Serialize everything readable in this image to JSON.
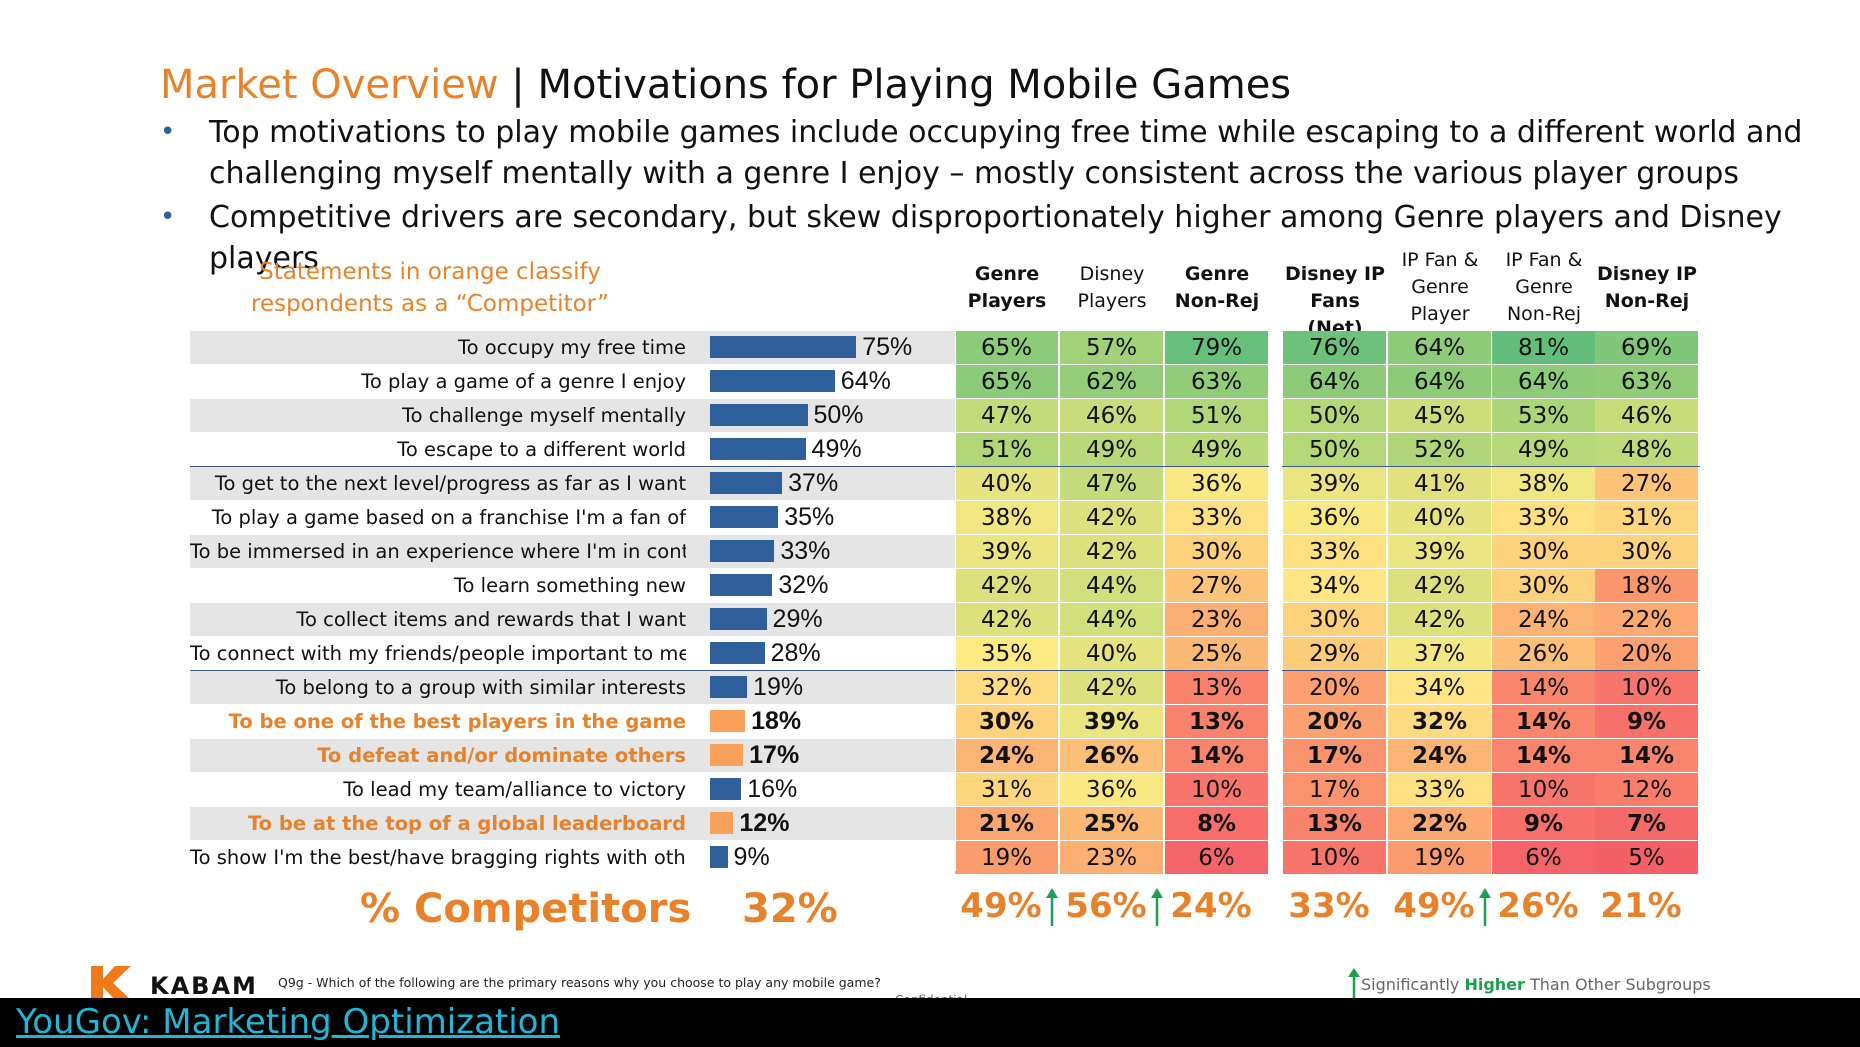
{
  "title": {
    "accent": "Market Overview",
    "separator": " | ",
    "main": "Motivations for Playing Mobile Games"
  },
  "bullets": [
    "Top motivations to play mobile games include occupying free time while escaping to a different world and challenging myself mentally with a genre I enjoy – mostly consistent across the various player groups",
    "Competitive drivers are secondary, but skew disproportionately higher among Genre players and Disney players"
  ],
  "note": "Statements in orange classify respondents as a “Competitor”",
  "colors": {
    "accent": "#e8822a",
    "bar": "#2e5f9b",
    "bar_competitor": "#f9a05a",
    "up_arrow": "#1aa150"
  },
  "chart_data": {
    "type": "table",
    "title": "Motivations for Playing Mobile Games",
    "columns": [
      "Genre Players",
      "Disney Players",
      "Genre Non-Rej",
      "Disney IP Fans (Net)",
      "IP Fan & Genre Player",
      "IP Fan & Genre Non-Rej",
      "Disney IP Non-Rej"
    ],
    "bold_columns": [
      0,
      2,
      3,
      6
    ],
    "rows": [
      {
        "label": "To occupy my free time",
        "overall": 75,
        "competitor": false,
        "values": [
          65,
          57,
          79,
          76,
          64,
          81,
          69
        ]
      },
      {
        "label": "To play a game of a genre I enjoy",
        "overall": 64,
        "competitor": false,
        "values": [
          65,
          62,
          63,
          64,
          64,
          64,
          63
        ]
      },
      {
        "label": "To challenge myself mentally",
        "overall": 50,
        "competitor": false,
        "values": [
          47,
          46,
          51,
          50,
          45,
          53,
          46
        ]
      },
      {
        "label": "To escape to a different world",
        "overall": 49,
        "competitor": false,
        "values": [
          51,
          49,
          49,
          50,
          52,
          49,
          48
        ]
      },
      {
        "label": "To get to the next level/progress as far as I want",
        "overall": 37,
        "competitor": false,
        "values": [
          40,
          47,
          36,
          39,
          41,
          38,
          27
        ]
      },
      {
        "label": "To play a game based on a franchise I'm a fan of",
        "overall": 35,
        "competitor": false,
        "values": [
          38,
          42,
          33,
          36,
          40,
          33,
          31
        ]
      },
      {
        "label": "To be immersed in an experience where I'm in control",
        "overall": 33,
        "competitor": false,
        "values": [
          39,
          42,
          30,
          33,
          39,
          30,
          30
        ]
      },
      {
        "label": "To learn something new",
        "overall": 32,
        "competitor": false,
        "values": [
          42,
          44,
          27,
          34,
          42,
          30,
          18
        ]
      },
      {
        "label": "To collect items and rewards that I want",
        "overall": 29,
        "competitor": false,
        "values": [
          42,
          44,
          23,
          30,
          42,
          24,
          22
        ]
      },
      {
        "label": "To connect with my friends/people important to me",
        "overall": 28,
        "competitor": false,
        "values": [
          35,
          40,
          25,
          29,
          37,
          26,
          20
        ]
      },
      {
        "label": "To belong to a group with similar interests",
        "overall": 19,
        "competitor": false,
        "values": [
          32,
          42,
          13,
          20,
          34,
          14,
          10
        ]
      },
      {
        "label": "To be one of the best players in the game",
        "overall": 18,
        "competitor": true,
        "values": [
          30,
          39,
          13,
          20,
          32,
          14,
          9
        ]
      },
      {
        "label": "To defeat and/or dominate others",
        "overall": 17,
        "competitor": true,
        "values": [
          24,
          26,
          14,
          17,
          24,
          14,
          14
        ]
      },
      {
        "label": "To lead my team/alliance to victory",
        "overall": 16,
        "competitor": false,
        "values": [
          31,
          36,
          10,
          17,
          33,
          10,
          12
        ]
      },
      {
        "label": "To be at the top of a global leaderboard",
        "overall": 12,
        "competitor": true,
        "values": [
          21,
          25,
          8,
          13,
          22,
          9,
          7
        ]
      },
      {
        "label": "To show I'm the best/have bragging rights with others",
        "overall": 9,
        "competitor": false,
        "values": [
          19,
          23,
          6,
          10,
          19,
          6,
          5
        ]
      }
    ],
    "totals": {
      "label": "% Competitors",
      "overall": 32,
      "values": [
        49,
        56,
        24,
        33,
        49,
        26,
        21
      ],
      "significantly_higher": [
        0,
        1,
        4
      ]
    },
    "unit": "%"
  },
  "footer": {
    "brand": "KABAM",
    "question": "Q9g - Which of the following are the primary reasons why you choose to play any mobile game?",
    "confidential": "Confidential",
    "legend_prefix": "Significantly ",
    "legend_highlight": "Higher",
    "legend_suffix": " Than Other Subgroups"
  },
  "banner": {
    "link_text": "YouGov: Marketing Optimization"
  }
}
